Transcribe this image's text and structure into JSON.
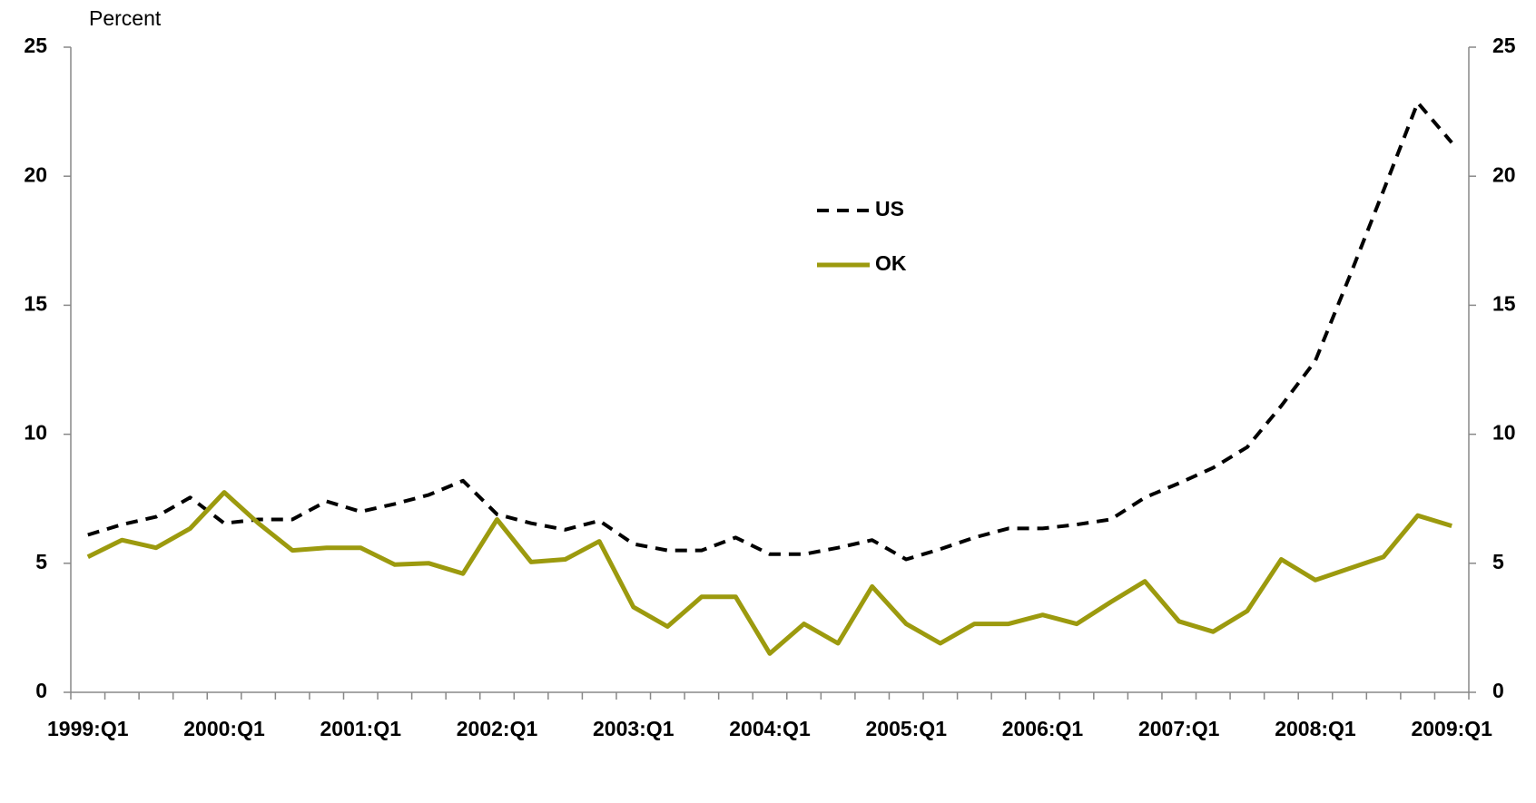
{
  "chart_data": {
    "type": "line",
    "y_label": "Percent",
    "categories": [
      "1999:Q1",
      null,
      null,
      null,
      "2000:Q1",
      null,
      null,
      null,
      "2001:Q1",
      null,
      null,
      null,
      "2002:Q1",
      null,
      null,
      null,
      "2003:Q1",
      null,
      null,
      null,
      "2004:Q1",
      null,
      null,
      null,
      "2005:Q1",
      null,
      null,
      null,
      "2006:Q1",
      null,
      null,
      null,
      "2007:Q1",
      null,
      null,
      null,
      "2008:Q1",
      null,
      null,
      null,
      "2009:Q1"
    ],
    "series": [
      {
        "name": "US",
        "color": "#000000",
        "dashed": true,
        "values": [
          6.1,
          6.5,
          6.8,
          7.55,
          6.55,
          6.7,
          6.7,
          7.4,
          7.0,
          7.3,
          7.65,
          8.2,
          6.9,
          6.55,
          6.3,
          6.65,
          5.75,
          5.5,
          5.5,
          6.0,
          5.35,
          5.35,
          5.6,
          5.9,
          5.15,
          5.55,
          6.0,
          6.35,
          6.35,
          6.5,
          6.7,
          7.55,
          8.1,
          8.7,
          9.5,
          11.1,
          12.85,
          16.1,
          19.45,
          22.85,
          21.3
        ]
      },
      {
        "name": "OK",
        "color": "#9c9a0e",
        "dashed": false,
        "values": [
          5.25,
          5.9,
          5.6,
          6.35,
          7.75,
          6.55,
          5.5,
          5.6,
          5.6,
          4.95,
          5.0,
          4.6,
          6.7,
          5.05,
          5.15,
          5.85,
          3.3,
          2.55,
          3.7,
          3.7,
          1.5,
          2.65,
          1.9,
          4.1,
          2.65,
          1.9,
          2.65,
          2.65,
          3.0,
          2.65,
          3.5,
          4.3,
          2.75,
          2.35,
          3.15,
          5.15,
          4.35,
          4.8,
          5.25,
          6.85,
          6.45
        ]
      }
    ],
    "ylim": [
      0,
      25
    ],
    "yticks": [
      0,
      5,
      10,
      15,
      20,
      25
    ],
    "grid": false
  }
}
